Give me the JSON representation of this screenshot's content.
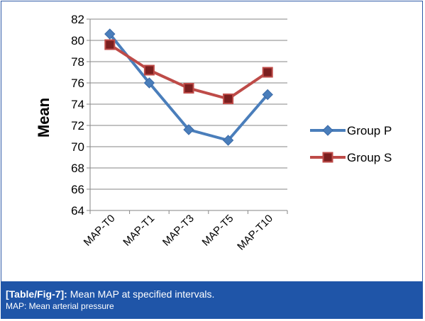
{
  "chart_data": {
    "type": "line",
    "title": "",
    "xlabel": "",
    "ylabel": "Mean",
    "ylim": [
      64,
      82
    ],
    "ytick_step": 2,
    "categories": [
      "MAP-T0",
      "MAP-T1",
      "MAP-T3",
      "MAP-T5",
      "MAP-T10"
    ],
    "series": [
      {
        "name": "Group P",
        "values": [
          80.6,
          76.0,
          71.6,
          70.6,
          74.9
        ],
        "color": "#4a7ebb",
        "marker": "diamond"
      },
      {
        "name": "Group S",
        "values": [
          79.6,
          77.2,
          75.5,
          74.5,
          77.0
        ],
        "color": "#be4b48",
        "marker": "square"
      }
    ],
    "grid": true,
    "legend_position": "right"
  },
  "caption": {
    "tag": "[Table/Fig-7]:",
    "text": " Mean MAP at specified intervals.",
    "note": "MAP: Mean arterial pressure"
  }
}
